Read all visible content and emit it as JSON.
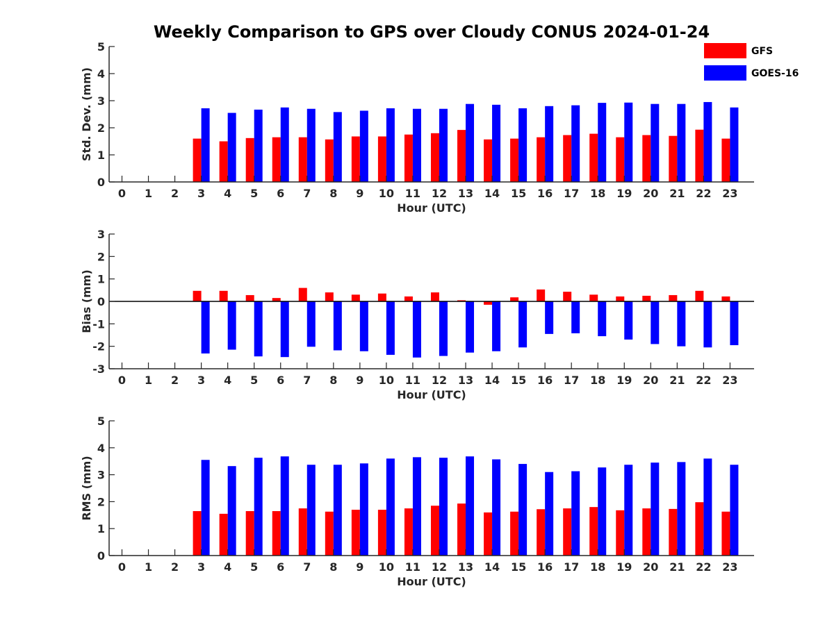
{
  "chart_data": {
    "type": "bar",
    "title": "Weekly Comparison to GPS over Cloudy CONUS 2024-01-24",
    "legend": {
      "placement": "top-right",
      "entries": [
        {
          "name": "GFS",
          "color": "#ff0000"
        },
        {
          "name": "GOES-16",
          "color": "#0000ff"
        }
      ]
    },
    "categories": [
      "0",
      "1",
      "2",
      "3",
      "4",
      "5",
      "6",
      "7",
      "8",
      "9",
      "10",
      "11",
      "12",
      "13",
      "14",
      "15",
      "16",
      "17",
      "18",
      "19",
      "20",
      "21",
      "22",
      "23"
    ],
    "panels": [
      {
        "ylabel": "Std. Dev. (mm)",
        "xlabel": "Hour (UTC)",
        "ylim": [
          0,
          5
        ],
        "yticks": [
          "0",
          "1",
          "2",
          "3",
          "4",
          "5"
        ],
        "series": [
          {
            "name": "GFS",
            "color": "#ff0000",
            "values": [
              null,
              null,
              null,
              1.6,
              1.5,
              1.62,
              1.65,
              1.65,
              1.57,
              1.68,
              1.68,
              1.75,
              1.8,
              1.92,
              1.57,
              1.6,
              1.65,
              1.73,
              1.78,
              1.65,
              1.73,
              1.7,
              1.93,
              1.6
            ]
          },
          {
            "name": "GOES-16",
            "color": "#0000ff",
            "values": [
              null,
              null,
              null,
              2.72,
              2.55,
              2.67,
              2.75,
              2.7,
              2.58,
              2.63,
              2.72,
              2.7,
              2.7,
              2.88,
              2.85,
              2.72,
              2.8,
              2.83,
              2.92,
              2.93,
              2.88,
              2.88,
              2.95,
              2.75
            ]
          }
        ]
      },
      {
        "ylabel": "Bias (mm)",
        "xlabel": "Hour (UTC)",
        "ylim": [
          -3,
          3
        ],
        "yticks": [
          "-3",
          "-2",
          "-1",
          "0",
          "1",
          "2",
          "3"
        ],
        "series": [
          {
            "name": "GFS",
            "color": "#ff0000",
            "values": [
              null,
              null,
              null,
              0.47,
              0.47,
              0.28,
              0.15,
              0.6,
              0.4,
              0.3,
              0.35,
              0.22,
              0.4,
              0.05,
              -0.15,
              0.18,
              0.53,
              0.43,
              0.3,
              0.22,
              0.25,
              0.28,
              0.47,
              0.22
            ]
          },
          {
            "name": "GOES-16",
            "color": "#0000ff",
            "values": [
              null,
              null,
              null,
              -2.32,
              -2.15,
              -2.45,
              -2.48,
              -2.02,
              -2.18,
              -2.22,
              -2.38,
              -2.5,
              -2.43,
              -2.28,
              -2.22,
              -2.05,
              -1.45,
              -1.42,
              -1.55,
              -1.7,
              -1.9,
              -2.0,
              -2.05,
              -1.95
            ]
          }
        ]
      },
      {
        "ylabel": "RMS (mm)",
        "xlabel": "Hour (UTC)",
        "ylim": [
          0,
          5
        ],
        "yticks": [
          "0",
          "1",
          "2",
          "3",
          "4",
          "5"
        ],
        "series": [
          {
            "name": "GFS",
            "color": "#ff0000",
            "values": [
              null,
              null,
              null,
              1.65,
              1.55,
              1.65,
              1.65,
              1.75,
              1.63,
              1.7,
              1.7,
              1.75,
              1.85,
              1.93,
              1.6,
              1.63,
              1.72,
              1.75,
              1.8,
              1.68,
              1.75,
              1.73,
              1.98,
              1.63
            ]
          },
          {
            "name": "GOES-16",
            "color": "#0000ff",
            "values": [
              null,
              null,
              null,
              3.55,
              3.32,
              3.63,
              3.68,
              3.37,
              3.37,
              3.42,
              3.6,
              3.65,
              3.63,
              3.68,
              3.57,
              3.4,
              3.1,
              3.13,
              3.27,
              3.37,
              3.45,
              3.47,
              3.6,
              3.37
            ]
          }
        ]
      }
    ]
  }
}
